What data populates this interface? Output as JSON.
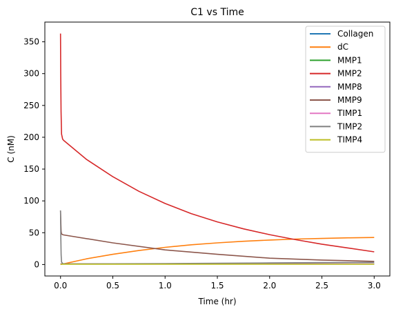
{
  "chart_data": {
    "type": "line",
    "title": "C1 vs Time",
    "xlabel": "Time (hr)",
    "ylabel": "C (nM)",
    "xlim": [
      -0.15,
      3.15
    ],
    "ylim": [
      -18,
      381
    ],
    "xticks": [
      0.0,
      0.5,
      1.0,
      1.5,
      2.0,
      2.5,
      3.0
    ],
    "xtick_labels": [
      "0.0",
      "0.5",
      "1.0",
      "1.5",
      "2.0",
      "2.5",
      "3.0"
    ],
    "yticks": [
      0,
      50,
      100,
      150,
      200,
      250,
      300,
      350
    ],
    "ytick_labels": [
      "0",
      "50",
      "100",
      "150",
      "200",
      "250",
      "300",
      "350"
    ],
    "grid": false,
    "legend_position": "top-right",
    "series": [
      {
        "name": "Collagen",
        "color": "#1f77b4",
        "x": [
          0,
          0.5,
          1,
          1.5,
          2,
          2.5,
          3
        ],
        "y": [
          1.0,
          1.0,
          1.0,
          1.0,
          1.0,
          1.0,
          1.0
        ]
      },
      {
        "name": "dC",
        "color": "#ff7f0e",
        "x": [
          0,
          0.25,
          0.5,
          0.75,
          1,
          1.25,
          1.5,
          1.75,
          2,
          2.25,
          2.5,
          2.75,
          3
        ],
        "y": [
          0,
          9,
          16,
          22,
          27,
          31,
          34,
          36.5,
          38.5,
          40,
          41,
          42,
          42.5
        ]
      },
      {
        "name": "MMP1",
        "color": "#2ca02c",
        "x": [
          0,
          0.5,
          1,
          1.5,
          2,
          2.5,
          3
        ],
        "y": [
          1.0,
          1.0,
          1.0,
          1.0,
          1.0,
          1.0,
          1.0
        ]
      },
      {
        "name": "MMP2",
        "color": "#d62728",
        "x": [
          0,
          0.002,
          0.005,
          0.01,
          0.02,
          0.03,
          0.25,
          0.5,
          0.75,
          1,
          1.25,
          1.5,
          1.75,
          2,
          2.25,
          2.5,
          2.75,
          3
        ],
        "y": [
          363,
          300,
          240,
          205,
          197,
          195,
          165,
          138,
          115,
          96,
          80,
          67,
          56,
          47,
          39,
          32,
          26,
          20
        ]
      },
      {
        "name": "MMP8",
        "color": "#9467bd",
        "x": [
          0,
          0.5,
          1,
          1.5,
          2,
          2.5,
          3
        ],
        "y": [
          1.0,
          1.0,
          1.0,
          1.0,
          1.0,
          1.0,
          1.0
        ]
      },
      {
        "name": "MMP9",
        "color": "#8c564b",
        "x": [
          0,
          0.003,
          0.006,
          0.01,
          0.02,
          0.03,
          0.5,
          1,
          1.5,
          2,
          2.5,
          3
        ],
        "y": [
          85,
          65,
          52,
          48,
          47,
          46.5,
          34,
          23,
          16,
          10,
          7,
          5
        ]
      },
      {
        "name": "TIMP1",
        "color": "#e377c2",
        "x": [
          0,
          0.5,
          1,
          1.5,
          2,
          2.5,
          3
        ],
        "y": [
          1.0,
          1.0,
          1.0,
          1.0,
          1.0,
          1.0,
          1.0
        ]
      },
      {
        "name": "TIMP2",
        "color": "#7f7f7f",
        "x": [
          0,
          0.003,
          0.006,
          0.01,
          0.02,
          0.05,
          0.5,
          1,
          1.5,
          2,
          2.5,
          3
        ],
        "y": [
          85,
          40,
          15,
          4,
          1.5,
          1.0,
          1.2,
          1.5,
          2.0,
          2.5,
          3.0,
          3.5
        ]
      },
      {
        "name": "TIMP4",
        "color": "#bcbd22",
        "x": [
          0,
          0.5,
          1,
          1.5,
          2,
          2.5,
          3
        ],
        "y": [
          0.5,
          0.5,
          0.5,
          0.5,
          0.5,
          0.5,
          0.5
        ]
      }
    ]
  }
}
